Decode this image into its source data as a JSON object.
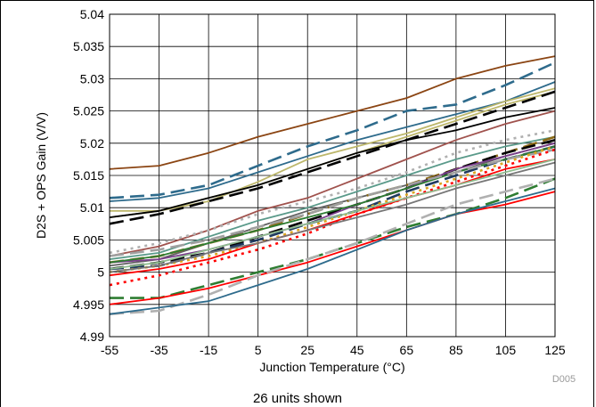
{
  "chart_data": {
    "type": "line",
    "title": "",
    "xlabel": "Junction Temperature (°C)",
    "ylabel": "D2S + OPS Gain (V/V)",
    "xlim": [
      -55,
      125
    ],
    "ylim": [
      4.99,
      5.04
    ],
    "x_ticks": [
      "-55",
      "-35",
      "-15",
      "5",
      "25",
      "45",
      "65",
      "85",
      "105",
      "125"
    ],
    "y_ticks": [
      "4.99",
      "4.995",
      "5",
      "5.005",
      "5.01",
      "5.015",
      "5.02",
      "5.025",
      "5.03",
      "5.035",
      "5.04"
    ],
    "grid": true,
    "figure_id": "D005",
    "caption": "26 units shown",
    "x": [
      -55,
      -35,
      -15,
      5,
      25,
      45,
      65,
      85,
      105,
      125
    ],
    "series": [
      {
        "color": "#8B4513",
        "dash": "solid",
        "values": [
          5.016,
          5.0165,
          5.0185,
          5.021,
          5.023,
          5.025,
          5.027,
          5.03,
          5.032,
          5.0335
        ]
      },
      {
        "color": "#2E6B8C",
        "dash": "long",
        "values": [
          5.0115,
          5.012,
          5.0135,
          5.0165,
          5.0195,
          5.022,
          5.025,
          5.026,
          5.029,
          5.0325
        ]
      },
      {
        "color": "#2E6B8C",
        "dash": "solid",
        "values": [
          5.011,
          5.0115,
          5.013,
          5.0155,
          5.018,
          5.0205,
          5.0225,
          5.0245,
          5.0265,
          5.0295
        ]
      },
      {
        "color": "#BDB76B",
        "dash": "solid",
        "values": [
          5.0095,
          5.0095,
          5.011,
          5.014,
          5.0175,
          5.0195,
          5.0215,
          5.024,
          5.0265,
          5.0285
        ]
      },
      {
        "color": "#BDB76B",
        "dash": "solid",
        "values": [
          5.0085,
          5.0095,
          5.0115,
          5.0135,
          5.016,
          5.0185,
          5.021,
          5.0235,
          5.026,
          5.028
        ]
      },
      {
        "color": "#000000",
        "dash": "long",
        "values": [
          5.0075,
          5.009,
          5.011,
          5.013,
          5.0155,
          5.018,
          5.0205,
          5.023,
          5.0255,
          5.028
        ]
      },
      {
        "color": "#000000",
        "dash": "solid",
        "values": [
          5.0085,
          5.0095,
          5.0115,
          5.0135,
          5.016,
          5.0185,
          5.0205,
          5.022,
          5.024,
          5.0255
        ]
      },
      {
        "color": "#A0524D",
        "dash": "solid",
        "values": [
          5.0025,
          5.004,
          5.0065,
          5.0095,
          5.0115,
          5.0145,
          5.0175,
          5.0205,
          5.023,
          5.025
        ]
      },
      {
        "color": "#B0B0B0",
        "dash": "dot",
        "values": [
          5.003,
          5.0045,
          5.0065,
          5.009,
          5.011,
          5.013,
          5.0155,
          5.0185,
          5.0205,
          5.022
        ]
      },
      {
        "color": "#5A9A8A",
        "dash": "solid",
        "values": [
          5.002,
          5.003,
          5.0055,
          5.008,
          5.01,
          5.0125,
          5.015,
          5.0175,
          5.0195,
          5.021
        ]
      },
      {
        "color": "#606060",
        "dash": "solid",
        "values": [
          5.001,
          5.002,
          5.0045,
          5.007,
          5.0095,
          5.0115,
          5.0135,
          5.0155,
          5.018,
          5.02
        ]
      },
      {
        "color": "#8B6914",
        "dash": "long",
        "values": [
          5.0015,
          5.0025,
          5.0045,
          5.0065,
          5.009,
          5.0115,
          5.0135,
          5.016,
          5.0185,
          5.021
        ]
      },
      {
        "color": "#000000",
        "dash": "long",
        "values": [
          5.0005,
          5.0015,
          5.003,
          5.0055,
          5.008,
          5.0105,
          5.013,
          5.016,
          5.0185,
          5.0205
        ]
      },
      {
        "color": "#7B3F8C",
        "dash": "solid",
        "values": [
          5.0015,
          5.002,
          5.0035,
          5.0055,
          5.0075,
          5.0105,
          5.013,
          5.016,
          5.018,
          5.02
        ]
      },
      {
        "color": "#1F3A5F",
        "dash": "long",
        "values": [
          5.0005,
          5.001,
          5.003,
          5.005,
          5.0075,
          5.0095,
          5.0125,
          5.015,
          5.0175,
          5.0195
        ]
      },
      {
        "color": "#2E7D32",
        "dash": "solid",
        "values": [
          5.0015,
          5.0025,
          5.0045,
          5.0065,
          5.0085,
          5.0105,
          5.013,
          5.0155,
          5.0175,
          5.0195
        ]
      },
      {
        "color": "#A0A0A0",
        "dash": "long",
        "values": [
          5.0025,
          5.0035,
          5.005,
          5.007,
          5.009,
          5.0115,
          5.0135,
          5.0155,
          5.0175,
          5.019
        ]
      },
      {
        "color": "#DAA520",
        "dash": "dot",
        "values": [
          5.0,
          5.001,
          5.0025,
          5.0045,
          5.007,
          5.0095,
          5.012,
          5.0145,
          5.017,
          5.0195
        ]
      },
      {
        "color": "#FF0000",
        "dash": "dot",
        "values": [
          4.998,
          4.9995,
          5.0015,
          5.0035,
          5.006,
          5.009,
          5.0115,
          5.014,
          5.0165,
          5.019
        ]
      },
      {
        "color": "#FF0000",
        "dash": "solid",
        "values": [
          4.9995,
          5.0005,
          5.002,
          5.0045,
          5.0065,
          5.009,
          5.0115,
          5.0135,
          5.016,
          5.0175
        ]
      },
      {
        "color": "#777777",
        "dash": "solid",
        "values": [
          5.0,
          5.001,
          5.003,
          5.0045,
          5.0065,
          5.0085,
          5.0105,
          5.013,
          5.015,
          5.017
        ]
      },
      {
        "color": "#2E7D32",
        "dash": "long",
        "values": [
          4.996,
          4.996,
          4.998,
          5.0,
          5.002,
          5.0045,
          5.007,
          5.009,
          5.0115,
          5.0145
        ]
      },
      {
        "color": "#FF0000",
        "dash": "solid",
        "values": [
          4.995,
          4.996,
          4.9975,
          4.9995,
          5.0015,
          5.004,
          5.0065,
          5.009,
          5.0105,
          5.0125
        ]
      },
      {
        "color": "#B0B0B0",
        "dash": "long",
        "values": [
          4.9935,
          4.994,
          4.9965,
          4.9995,
          5.002,
          5.0045,
          5.0075,
          5.0105,
          5.0125,
          5.0145
        ]
      },
      {
        "color": "#2E6B8C",
        "dash": "solid",
        "values": [
          4.9935,
          4.9945,
          4.9955,
          4.998,
          5.0005,
          5.0035,
          5.0065,
          5.009,
          5.011,
          5.013
        ]
      },
      {
        "color": "#8FBC8F",
        "dash": "solid",
        "values": [
          5.0005,
          5.0015,
          5.0035,
          5.0055,
          5.0075,
          5.0095,
          5.0115,
          5.0135,
          5.0155,
          5.0175
        ]
      }
    ]
  }
}
